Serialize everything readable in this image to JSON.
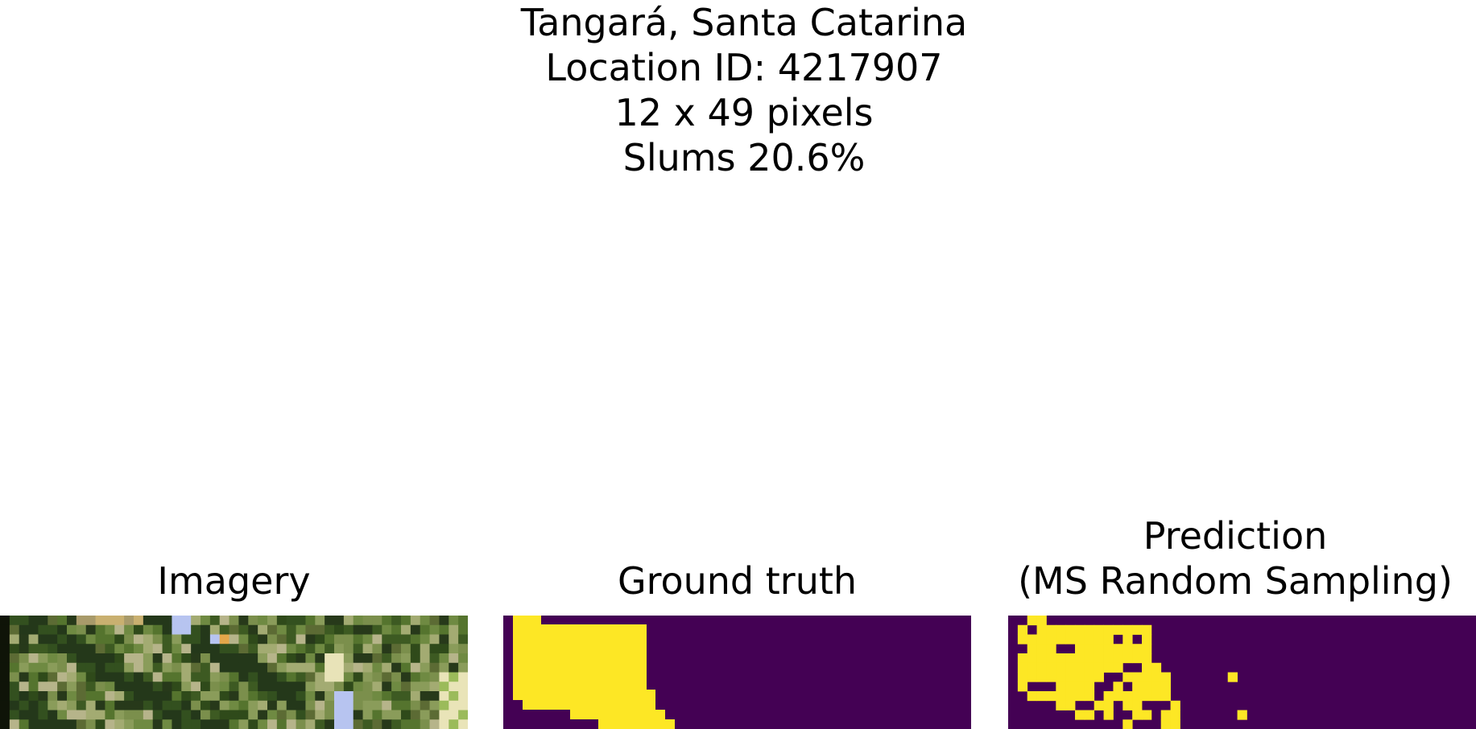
{
  "figure": {
    "suptitle_lines": [
      "Tangará, Santa Catarina",
      "Location ID: 4217907",
      "12 x 49 pixels",
      "Slums 20.6%"
    ]
  },
  "panels": [
    {
      "title_lines": [
        "Imagery"
      ]
    },
    {
      "title_lines": [
        "Ground truth"
      ]
    },
    {
      "title_lines": [
        "Prediction",
        "(MS Random Sampling)"
      ]
    }
  ],
  "colors": {
    "background_class": "#440154",
    "slum_class": "#fde725"
  }
}
